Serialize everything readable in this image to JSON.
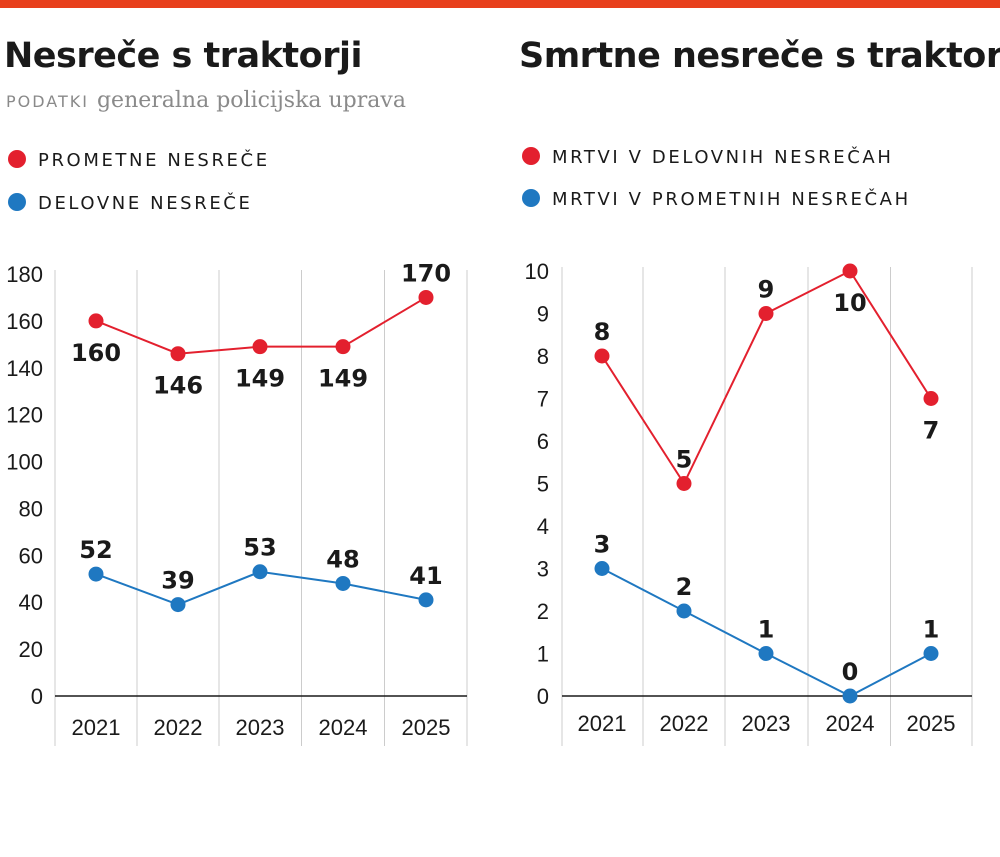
{
  "colors": {
    "accent_bar": "#e8401c",
    "red_series": "#e3202e",
    "blue_series": "#1f78c1",
    "grid": "#cccccc"
  },
  "header": {
    "left_title": "Nesreče s traktorji",
    "right_title": "Smrtne nesreče s traktorji",
    "source_label": "PODATKI",
    "source_text": "generalna policijska uprava"
  },
  "legend_left": [
    "PROMETNE NESREČE",
    "DELOVNE NESREČE"
  ],
  "legend_right": [
    "MRTVI V DELOVNIH NESREČAH",
    "MRTVI V PROMETNIH NESREČAH"
  ],
  "chart_data": [
    {
      "type": "line",
      "title": "Nesreče s traktorji",
      "categories": [
        "2021",
        "2022",
        "2023",
        "2024",
        "2025"
      ],
      "series": [
        {
          "name": "PROMETNE NESREČE",
          "color": "#e3202e",
          "values": [
            160,
            146,
            149,
            149,
            170
          ]
        },
        {
          "name": "DELOVNE NESREČE",
          "color": "#1f78c1",
          "values": [
            52,
            39,
            53,
            48,
            41
          ]
        }
      ],
      "yticks": [
        0,
        20,
        40,
        60,
        80,
        100,
        120,
        140,
        160,
        180
      ],
      "ylim": [
        0,
        180
      ],
      "grid": "vertical",
      "legend_position": "top-left"
    },
    {
      "type": "line",
      "title": "Smrtne nesreče s traktorji",
      "categories": [
        "2021",
        "2022",
        "2023",
        "2024",
        "2025"
      ],
      "series": [
        {
          "name": "MRTVI V DELOVNIH NESREČAH",
          "color": "#e3202e",
          "values": [
            8,
            5,
            9,
            10,
            7
          ]
        },
        {
          "name": "MRTVI V PROMETNIH NESREČAH",
          "color": "#1f78c1",
          "values": [
            3,
            2,
            1,
            0,
            1
          ]
        }
      ],
      "yticks": [
        0,
        1,
        2,
        3,
        4,
        5,
        6,
        7,
        8,
        9,
        10
      ],
      "ylim": [
        0,
        10
      ],
      "grid": "vertical",
      "legend_position": "top-left"
    }
  ]
}
